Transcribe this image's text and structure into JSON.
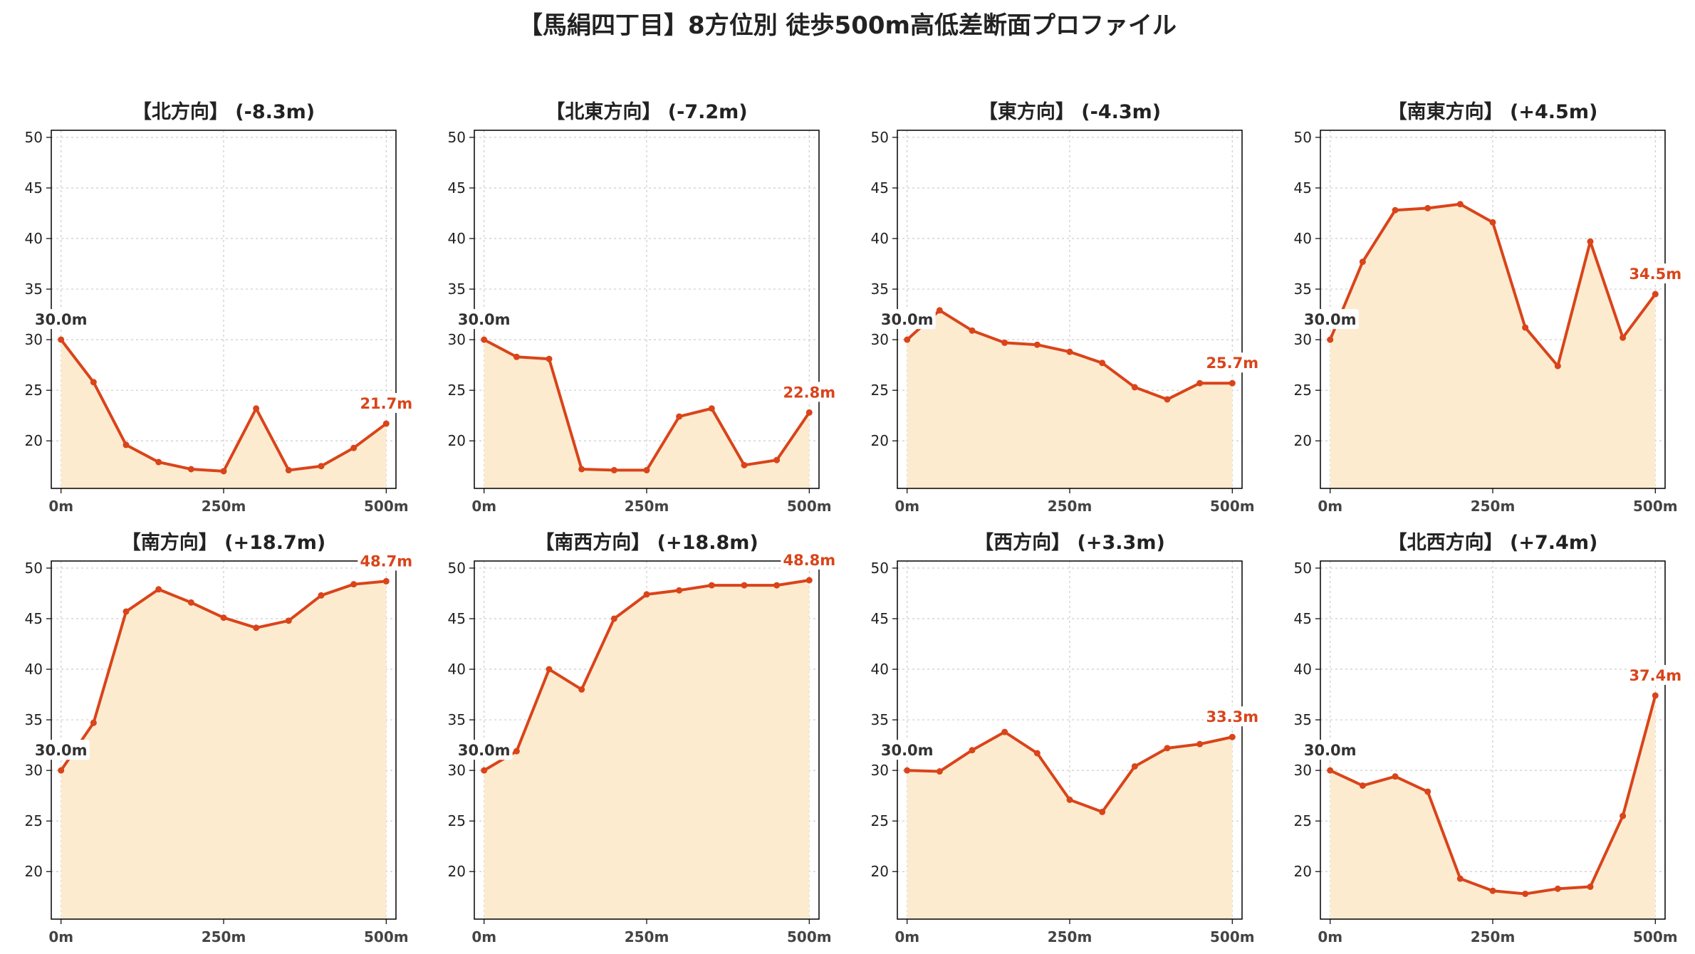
{
  "title": "【馬絹四丁目】8方位別 徒歩500m高低差断面プロファイル",
  "colors": {
    "line": "#d9441a",
    "fill": "#fdebd0",
    "start_label": "#333333",
    "end_label": "#d9441a",
    "grid": "#cccccc"
  },
  "chart_data": [
    {
      "type": "area",
      "title": "【北方向】 (-8.3m)",
      "x": [
        0,
        50,
        100,
        150,
        200,
        250,
        300,
        350,
        400,
        450,
        500
      ],
      "y": [
        30.0,
        25.8,
        19.6,
        17.9,
        17.2,
        17.0,
        23.2,
        17.1,
        17.5,
        19.3,
        21.7
      ],
      "xticks": [
        "0m",
        "250m",
        "500m"
      ],
      "yticks": [
        20,
        25,
        30,
        35,
        40,
        45,
        50
      ],
      "ylim": [
        15.3,
        50.7
      ],
      "xlim": [
        -15,
        515
      ],
      "start_label": "30.0m",
      "end_label": "21.7m",
      "grid": true
    },
    {
      "type": "area",
      "title": "【北東方向】 (-7.2m)",
      "x": [
        0,
        50,
        100,
        150,
        200,
        250,
        300,
        350,
        400,
        450,
        500
      ],
      "y": [
        30.0,
        28.3,
        28.1,
        17.2,
        17.1,
        17.1,
        22.4,
        23.2,
        17.6,
        18.1,
        22.8
      ],
      "xticks": [
        "0m",
        "250m",
        "500m"
      ],
      "yticks": [
        20,
        25,
        30,
        35,
        40,
        45,
        50
      ],
      "ylim": [
        15.3,
        50.7
      ],
      "xlim": [
        -15,
        515
      ],
      "start_label": "30.0m",
      "end_label": "22.8m",
      "grid": true
    },
    {
      "type": "area",
      "title": "【東方向】 (-4.3m)",
      "x": [
        0,
        50,
        100,
        150,
        200,
        250,
        300,
        350,
        400,
        450,
        500
      ],
      "y": [
        30.0,
        32.9,
        30.9,
        29.7,
        29.5,
        28.8,
        27.7,
        25.3,
        24.1,
        25.7,
        25.7
      ],
      "xticks": [
        "0m",
        "250m",
        "500m"
      ],
      "yticks": [
        20,
        25,
        30,
        35,
        40,
        45,
        50
      ],
      "ylim": [
        15.3,
        50.7
      ],
      "xlim": [
        -15,
        515
      ],
      "start_label": "30.0m",
      "end_label": "25.7m",
      "grid": true
    },
    {
      "type": "area",
      "title": "【南東方向】 (+4.5m)",
      "x": [
        0,
        50,
        100,
        150,
        200,
        250,
        300,
        350,
        400,
        450,
        500
      ],
      "y": [
        30.0,
        37.7,
        42.8,
        43.0,
        43.4,
        41.6,
        31.2,
        27.4,
        39.7,
        30.2,
        34.5
      ],
      "xticks": [
        "0m",
        "250m",
        "500m"
      ],
      "yticks": [
        20,
        25,
        30,
        35,
        40,
        45,
        50
      ],
      "ylim": [
        15.3,
        50.7
      ],
      "xlim": [
        -15,
        515
      ],
      "start_label": "30.0m",
      "end_label": "34.5m",
      "grid": true
    },
    {
      "type": "area",
      "title": "【南方向】 (+18.7m)",
      "x": [
        0,
        50,
        100,
        150,
        200,
        250,
        300,
        350,
        400,
        450,
        500
      ],
      "y": [
        30.0,
        34.7,
        45.7,
        47.9,
        46.6,
        45.1,
        44.1,
        44.8,
        47.3,
        48.4,
        48.7
      ],
      "xticks": [
        "0m",
        "250m",
        "500m"
      ],
      "yticks": [
        20,
        25,
        30,
        35,
        40,
        45,
        50
      ],
      "ylim": [
        15.3,
        50.7
      ],
      "xlim": [
        -15,
        515
      ],
      "start_label": "30.0m",
      "end_label": "48.7m",
      "grid": true
    },
    {
      "type": "area",
      "title": "【南西方向】 (+18.8m)",
      "x": [
        0,
        50,
        100,
        150,
        200,
        250,
        300,
        350,
        400,
        450,
        500
      ],
      "y": [
        30.0,
        31.9,
        40.0,
        38.0,
        45.0,
        47.4,
        47.8,
        48.3,
        48.3,
        48.3,
        48.8
      ],
      "xticks": [
        "0m",
        "250m",
        "500m"
      ],
      "yticks": [
        20,
        25,
        30,
        35,
        40,
        45,
        50
      ],
      "ylim": [
        15.3,
        50.7
      ],
      "xlim": [
        -15,
        515
      ],
      "start_label": "30.0m",
      "end_label": "48.8m",
      "grid": true
    },
    {
      "type": "area",
      "title": "【西方向】 (+3.3m)",
      "x": [
        0,
        50,
        100,
        150,
        200,
        250,
        300,
        350,
        400,
        450,
        500
      ],
      "y": [
        30.0,
        29.9,
        32.0,
        33.8,
        31.7,
        27.1,
        25.9,
        30.4,
        32.2,
        32.6,
        33.3
      ],
      "xticks": [
        "0m",
        "250m",
        "500m"
      ],
      "yticks": [
        20,
        25,
        30,
        35,
        40,
        45,
        50
      ],
      "ylim": [
        15.3,
        50.7
      ],
      "xlim": [
        -15,
        515
      ],
      "start_label": "30.0m",
      "end_label": "33.3m",
      "grid": true
    },
    {
      "type": "area",
      "title": "【北西方向】 (+7.4m)",
      "x": [
        0,
        50,
        100,
        150,
        200,
        250,
        300,
        350,
        400,
        450,
        500
      ],
      "y": [
        30.0,
        28.5,
        29.4,
        27.9,
        19.3,
        18.1,
        17.8,
        18.3,
        18.5,
        25.5,
        37.4
      ],
      "xticks": [
        "0m",
        "250m",
        "500m"
      ],
      "yticks": [
        20,
        25,
        30,
        35,
        40,
        45,
        50
      ],
      "ylim": [
        15.3,
        50.7
      ],
      "xlim": [
        -15,
        515
      ],
      "start_label": "30.0m",
      "end_label": "37.4m",
      "grid": true
    }
  ]
}
